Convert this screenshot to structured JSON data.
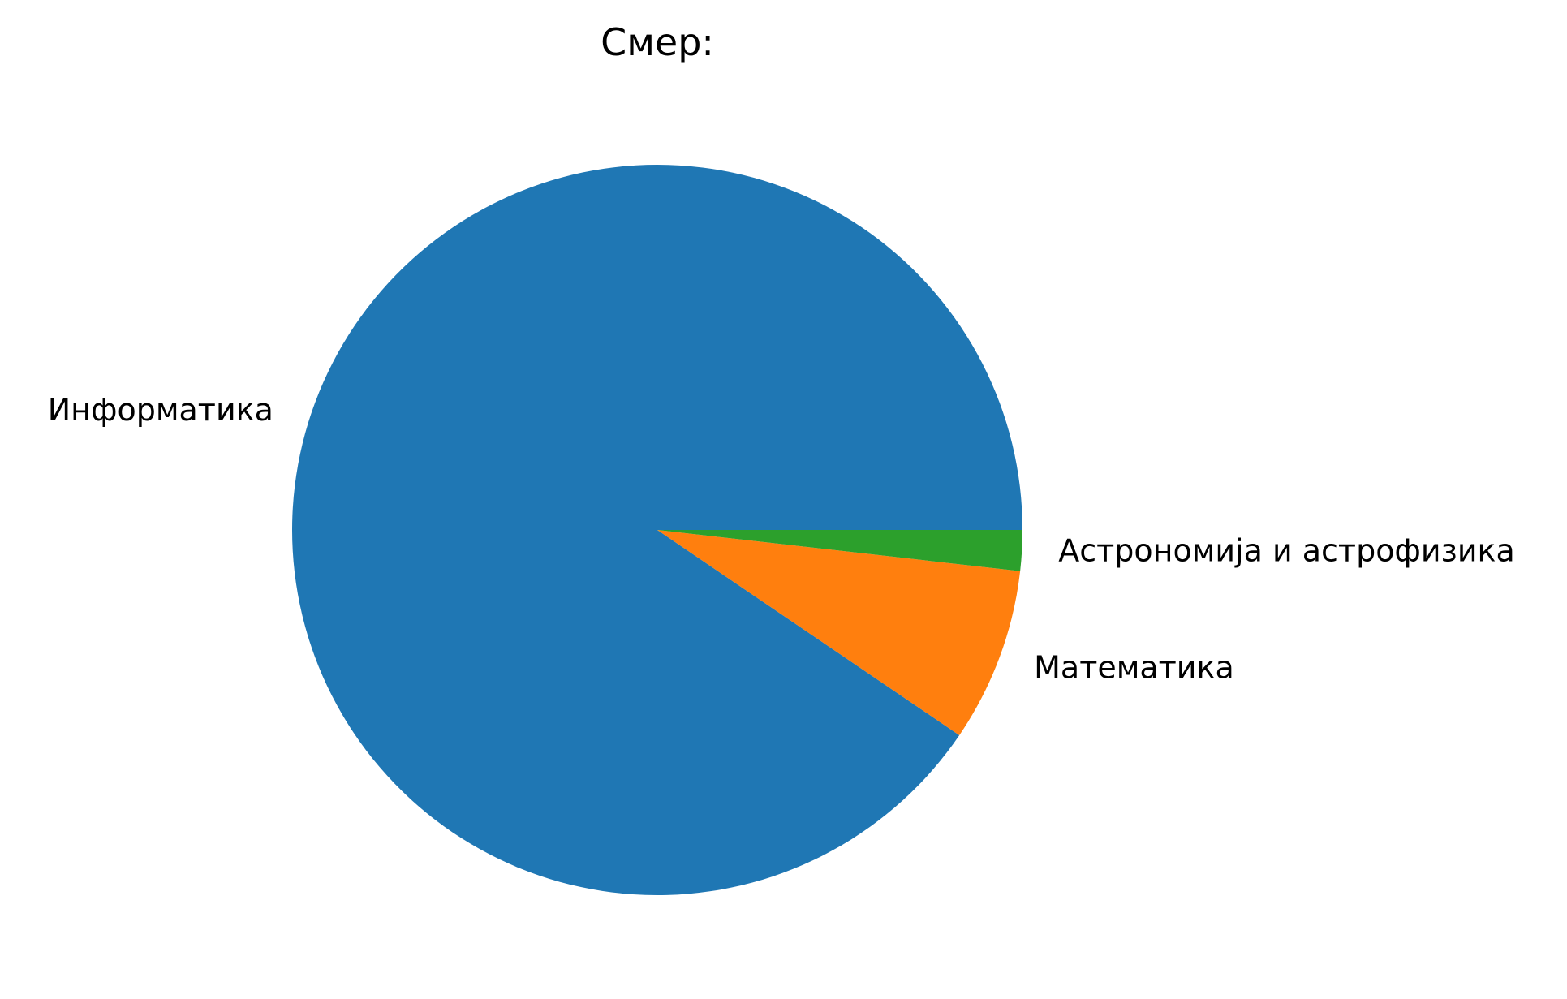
{
  "chart_data": {
    "type": "pie",
    "title": "Смер:",
    "categories": [
      "Информатика",
      "Математика",
      "Астрономија и астрофизика"
    ],
    "values": [
      90.5,
      7.7,
      1.8
    ],
    "colors": [
      "#1f77b4",
      "#ff7f0e",
      "#2ca02c"
    ],
    "start_angle_deg": 0,
    "direction": "counterclockwise"
  }
}
